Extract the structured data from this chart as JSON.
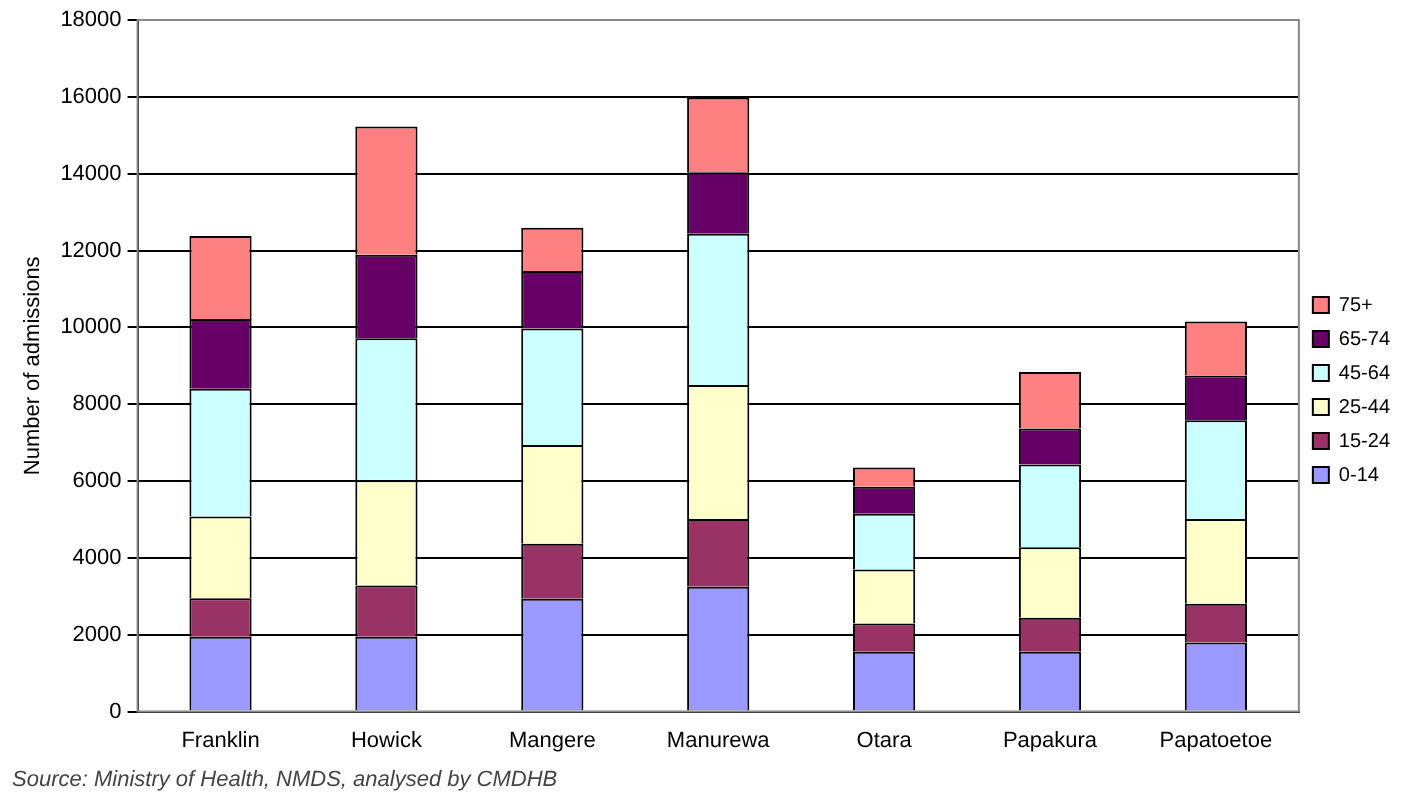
{
  "chart_data": {
    "type": "bar",
    "stacked": true,
    "ylabel": "Number of admissions",
    "categories": [
      "Franklin",
      "Howick",
      "Mangere",
      "Manurewa",
      "Otara",
      "Papakura",
      "Papatoetoe"
    ],
    "series": [
      {
        "name": "0-14",
        "color": "#9999ff",
        "values": [
          1950,
          1950,
          2940,
          3250,
          1560,
          1560,
          1800
        ]
      },
      {
        "name": "15-24",
        "color": "#993366",
        "values": [
          1000,
          1330,
          1430,
          1760,
          730,
          880,
          1010
        ]
      },
      {
        "name": "25-44",
        "color": "#ffffcc",
        "values": [
          2130,
          2740,
          2570,
          3490,
          1410,
          1840,
          2200
        ]
      },
      {
        "name": "45-64",
        "color": "#ccffff",
        "values": [
          3320,
          3700,
          3030,
          3940,
          1450,
          2150,
          2570
        ]
      },
      {
        "name": "65-74",
        "color": "#660066",
        "values": [
          1820,
          2170,
          1500,
          1600,
          700,
          940,
          1170
        ]
      },
      {
        "name": "75+",
        "color": "#ff8080",
        "values": [
          2160,
          3340,
          1120,
          1940,
          500,
          1470,
          1400
        ]
      }
    ],
    "ylim": [
      0,
      18000
    ],
    "yticks": [
      0,
      2000,
      4000,
      6000,
      8000,
      10000,
      12000,
      14000,
      16000,
      18000
    ],
    "grid": "y",
    "legend": "right",
    "annotations": [
      "Source: Ministry of Health, NMDS, analysed by CMDHB"
    ]
  }
}
